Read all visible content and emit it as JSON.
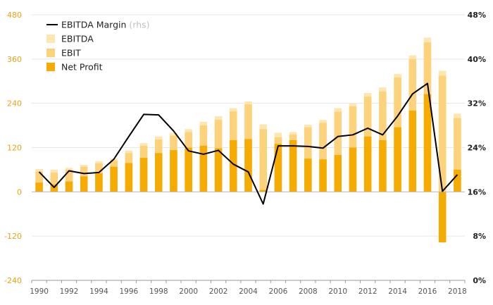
{
  "chart_data": {
    "type": "bar",
    "title": "",
    "x": [
      1990,
      1991,
      1992,
      1993,
      1994,
      1995,
      1996,
      1997,
      1998,
      1999,
      2000,
      2001,
      2002,
      2003,
      2004,
      2005,
      2006,
      2007,
      2008,
      2009,
      2010,
      2011,
      2012,
      2013,
      2014,
      2015,
      2016,
      2017,
      2018
    ],
    "x_tick_labels": [
      "1990",
      "1992",
      "1994",
      "1996",
      "1998",
      "2000",
      "2002",
      "2004",
      "2006",
      "2008",
      "2010",
      "2012",
      "2014",
      "2016",
      "2018"
    ],
    "y_left": {
      "ylim": [
        -240,
        480
      ],
      "ticks": [
        -240,
        -120,
        0,
        120,
        240,
        360,
        480
      ],
      "tick_labels": [
        "-240",
        "-120",
        "0",
        "120",
        "240",
        "360",
        "480"
      ]
    },
    "y_right": {
      "ylim": [
        0,
        48
      ],
      "ticks": [
        0,
        8,
        16,
        24,
        32,
        40,
        48
      ],
      "tick_labels": [
        "0%",
        "8%",
        "16%",
        "24%",
        "32%",
        "40%",
        "48%"
      ],
      "unit": "%"
    },
    "grid": true,
    "legend_position": "top-left",
    "legend": {
      "margin_label": "EBITDA Margin",
      "margin_suffix": "(rhs)",
      "ebitda_label": "EBITDA",
      "ebit_label": "EBIT",
      "net_label": "Net Profit"
    },
    "series": [
      {
        "name": "EBITDA",
        "kind": "bar",
        "color": "#fde6b0",
        "values": [
          62,
          60,
          65,
          73,
          83,
          90,
          112,
          132,
          150,
          160,
          170,
          190,
          205,
          227,
          245,
          183,
          160,
          162,
          182,
          195,
          227,
          240,
          268,
          283,
          320,
          370,
          418,
          328,
          212
        ]
      },
      {
        "name": "EBIT",
        "kind": "bar",
        "color": "#fcd27b",
        "values": [
          55,
          52,
          60,
          68,
          77,
          85,
          105,
          125,
          142,
          152,
          162,
          180,
          195,
          218,
          237,
          170,
          148,
          155,
          175,
          187,
          217,
          232,
          258,
          272,
          310,
          360,
          405,
          315,
          200
        ]
      },
      {
        "name": "Net Profit",
        "kind": "bar",
        "color": "#f6ab00",
        "values": [
          25,
          20,
          28,
          42,
          50,
          68,
          78,
          92,
          105,
          113,
          120,
          125,
          118,
          140,
          143,
          5,
          130,
          140,
          90,
          88,
          100,
          120,
          150,
          140,
          175,
          220,
          265,
          -137,
          60
        ]
      },
      {
        "name": "EBITDA Margin",
        "kind": "line",
        "axis": "right",
        "color": "#000000",
        "values": [
          19.6,
          16.8,
          19.8,
          19.3,
          19.5,
          21.9,
          26.0,
          30.0,
          29.9,
          27.0,
          23.4,
          22.8,
          23.5,
          21.0,
          19.6,
          13.8,
          24.3,
          24.3,
          24.2,
          23.9,
          26.0,
          26.3,
          27.5,
          26.3,
          29.7,
          33.7,
          35.6,
          16.1,
          19.1
        ]
      }
    ]
  }
}
